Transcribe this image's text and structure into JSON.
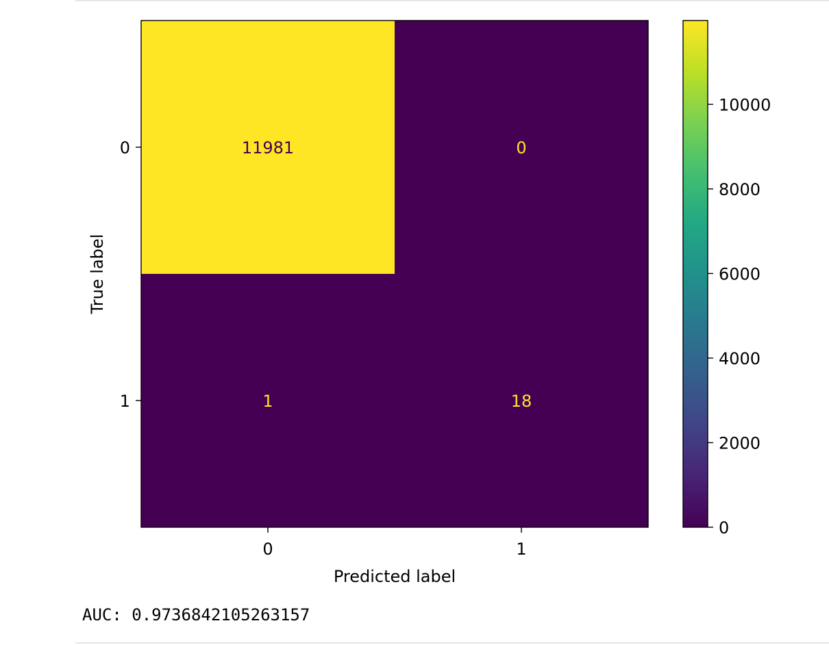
{
  "chart_data": {
    "type": "heatmap",
    "title": "",
    "xlabel": "Predicted label",
    "ylabel": "True label",
    "x_categories": [
      "0",
      "1"
    ],
    "y_categories": [
      "0",
      "1"
    ],
    "matrix": [
      [
        11981,
        0
      ],
      [
        1,
        18
      ]
    ],
    "colormap": "viridis",
    "colorbar": {
      "range": [
        0,
        11981
      ],
      "ticks": [
        0,
        2000,
        4000,
        6000,
        8000,
        10000
      ]
    },
    "grid": false
  },
  "output": {
    "text": "AUC: 0.9736842105263157"
  },
  "colors": {
    "low": "#440154",
    "high": "#fde725",
    "text_on_low": "#fde725",
    "text_on_high": "#440154"
  }
}
